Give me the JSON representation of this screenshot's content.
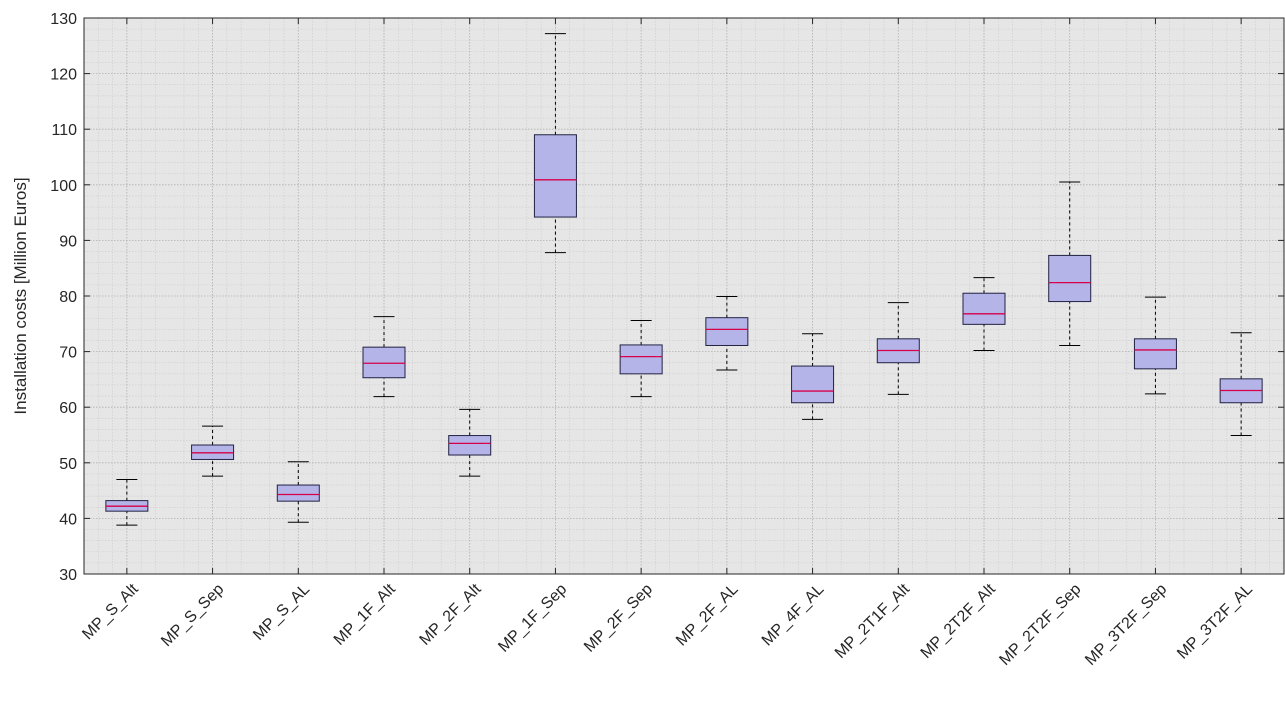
{
  "chart_data": {
    "type": "box",
    "title": "",
    "xlabel": "",
    "ylabel": "Installation costs [Million Euros]",
    "ylim": [
      30,
      130
    ],
    "yticks": [
      30,
      40,
      50,
      60,
      70,
      80,
      90,
      100,
      110,
      120,
      130
    ],
    "grid": true,
    "minor_grid": true,
    "legend": "none",
    "categories": [
      "MP_S_Alt",
      "MP_S_Sep",
      "MP_S_AL",
      "MP_1F_Alt",
      "MP_2F_Alt",
      "MP_1F_Sep",
      "MP_2F_Sep",
      "MP_2F_AL",
      "MP_4F_AL",
      "MP_2T1F_Alt",
      "MP_2T2F_Alt",
      "MP_2T2F_Sep",
      "MP_3T2F_Sep",
      "MP_3T2F_AL"
    ],
    "boxes": [
      {
        "min": 38.8,
        "q1": 41.3,
        "median": 42.2,
        "q3": 43.2,
        "max": 47.0
      },
      {
        "min": 47.6,
        "q1": 50.6,
        "median": 51.8,
        "q3": 53.2,
        "max": 56.6
      },
      {
        "min": 39.3,
        "q1": 43.1,
        "median": 44.3,
        "q3": 46.0,
        "max": 50.2
      },
      {
        "min": 61.9,
        "q1": 65.3,
        "median": 67.9,
        "q3": 70.8,
        "max": 76.3
      },
      {
        "min": 47.6,
        "q1": 51.4,
        "median": 53.5,
        "q3": 54.9,
        "max": 59.6
      },
      {
        "min": 87.8,
        "q1": 94.2,
        "median": 100.9,
        "q3": 109.0,
        "max": 127.2
      },
      {
        "min": 61.9,
        "q1": 66.0,
        "median": 69.1,
        "q3": 71.2,
        "max": 75.6
      },
      {
        "min": 66.7,
        "q1": 71.1,
        "median": 74.0,
        "q3": 76.1,
        "max": 79.9
      },
      {
        "min": 57.8,
        "q1": 60.8,
        "median": 62.9,
        "q3": 67.4,
        "max": 73.2
      },
      {
        "min": 62.3,
        "q1": 68.0,
        "median": 70.2,
        "q3": 72.3,
        "max": 78.8
      },
      {
        "min": 70.2,
        "q1": 74.9,
        "median": 76.8,
        "q3": 80.5,
        "max": 83.3
      },
      {
        "min": 71.1,
        "q1": 79.0,
        "median": 82.4,
        "q3": 87.3,
        "max": 100.5
      },
      {
        "min": 62.4,
        "q1": 66.9,
        "median": 70.3,
        "q3": 72.3,
        "max": 79.8
      },
      {
        "min": 54.9,
        "q1": 60.8,
        "median": 63.0,
        "q3": 65.1,
        "max": 73.4
      }
    ],
    "colors": {
      "plot_background": "#e6e6e6",
      "grid_major": "#b0b0b0",
      "grid_minor": "#cccccc",
      "box_fill": "#b4b4e8",
      "box_edge": "#222244",
      "median": "#d6004a",
      "whisker": "#000000",
      "axis": "#262626"
    }
  }
}
